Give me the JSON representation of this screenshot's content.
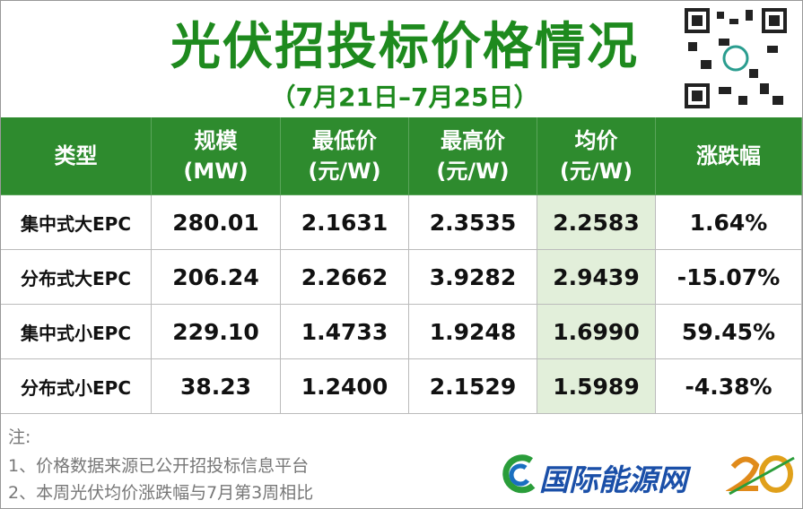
{
  "header": {
    "title": "光伏招投标价格情况",
    "subtitle": "（7月21日–7月25日）"
  },
  "table": {
    "columns": [
      [
        "类型"
      ],
      [
        "规模",
        "(MW)"
      ],
      [
        "最低价",
        "(元/W)"
      ],
      [
        "最高价",
        "(元/W)"
      ],
      [
        "均价",
        "(元/W)"
      ],
      [
        "涨跌幅"
      ]
    ],
    "rows": [
      [
        "集中式大EPC",
        "280.01",
        "2.1631",
        "2.3535",
        "2.2583",
        "1.64%"
      ],
      [
        "分布式大EPC",
        "206.24",
        "2.2662",
        "3.9282",
        "2.9439",
        "-15.07%"
      ],
      [
        "集中式小EPC",
        "229.10",
        "1.4733",
        "1.9248",
        "1.6990",
        "59.45%"
      ],
      [
        "分布式小EPC",
        "38.23",
        "1.2400",
        "2.1529",
        "1.5989",
        "-4.38%"
      ]
    ]
  },
  "notes": {
    "label": "注:",
    "items": [
      "1、价格数据来源已公开招投标信息平台",
      "2、本周光伏均价涨跌幅与7月第3周相比"
    ]
  },
  "logo": {
    "text": "国际能源网"
  }
}
